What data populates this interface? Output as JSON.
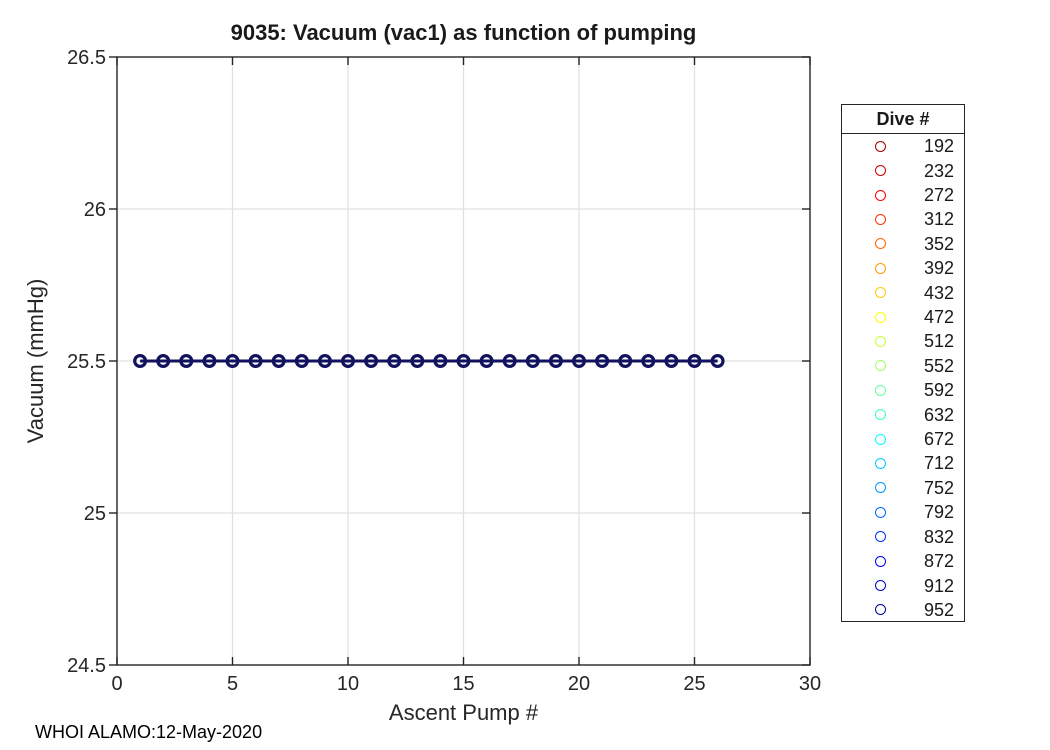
{
  "figure": {
    "footer": "WHOI ALAMO:12-May-2020"
  },
  "chart_data": {
    "type": "line",
    "title": "9035: Vacuum (vac1) as function of pumping",
    "xlabel": "Ascent Pump #",
    "ylabel": "Vacuum (mmHg)",
    "xlim": [
      0,
      30
    ],
    "ylim": [
      24.5,
      26.5
    ],
    "xticks": [
      0,
      5,
      10,
      15,
      20,
      25,
      30
    ],
    "yticks": [
      24.5,
      25,
      25.5,
      26,
      26.5
    ],
    "grid": true,
    "box": true,
    "x": [
      1,
      2,
      3,
      4,
      5,
      6,
      7,
      8,
      9,
      10,
      11,
      12,
      13,
      14,
      15,
      16,
      17,
      18,
      19,
      20,
      21,
      22,
      23,
      24,
      25,
      26
    ],
    "series": [
      {
        "color": "#12125e",
        "marker": "open-circle",
        "values": [
          25.5,
          25.5,
          25.5,
          25.5,
          25.5,
          25.5,
          25.5,
          25.5,
          25.5,
          25.5,
          25.5,
          25.5,
          25.5,
          25.5,
          25.5,
          25.5,
          25.5,
          25.5,
          25.5,
          25.5,
          25.5,
          25.5,
          25.5,
          25.5,
          25.5,
          25.5
        ]
      }
    ],
    "legend": {
      "title": "Dive #",
      "position": "right-outside",
      "entries": [
        {
          "label": "192",
          "color": "#990000"
        },
        {
          "label": "232",
          "color": "#cc0000"
        },
        {
          "label": "272",
          "color": "#ff0000"
        },
        {
          "label": "312",
          "color": "#ff3300"
        },
        {
          "label": "352",
          "color": "#ff6600"
        },
        {
          "label": "392",
          "color": "#ff9900"
        },
        {
          "label": "432",
          "color": "#ffcc00"
        },
        {
          "label": "472",
          "color": "#ffff00"
        },
        {
          "label": "512",
          "color": "#ccff33"
        },
        {
          "label": "552",
          "color": "#99ff66"
        },
        {
          "label": "592",
          "color": "#66ff99"
        },
        {
          "label": "632",
          "color": "#33ffcc"
        },
        {
          "label": "672",
          "color": "#00ffff"
        },
        {
          "label": "712",
          "color": "#00ccff"
        },
        {
          "label": "752",
          "color": "#0099ff"
        },
        {
          "label": "792",
          "color": "#0066ff"
        },
        {
          "label": "832",
          "color": "#0033ff"
        },
        {
          "label": "872",
          "color": "#0000ff"
        },
        {
          "label": "912",
          "color": "#0000cc"
        },
        {
          "label": "952",
          "color": "#000099"
        }
      ]
    },
    "colors": {
      "axis": "#242424",
      "grid": "#e0e0e0",
      "data_line": "#12125e"
    }
  }
}
